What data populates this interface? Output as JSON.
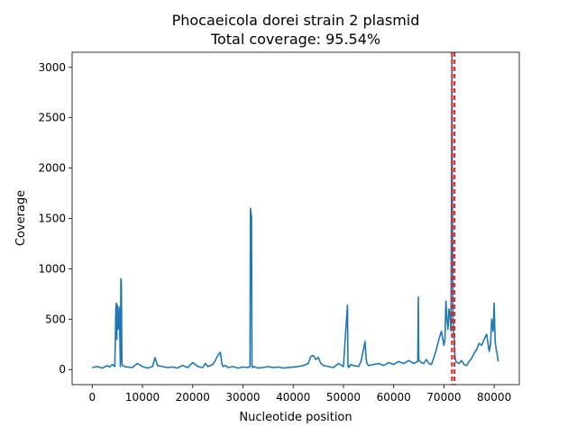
{
  "chart_data": {
    "type": "line",
    "title": "Phocaeicola dorei strain 2 plasmid",
    "subtitle": "Total coverage: 95.54%",
    "xlabel": "Nucleotide position",
    "ylabel": "Coverage",
    "xlim": [
      -4000,
      85000
    ],
    "ylim": [
      -150,
      3150
    ],
    "x_ticks": [
      0,
      10000,
      20000,
      30000,
      40000,
      50000,
      60000,
      70000,
      80000
    ],
    "x_tick_labels": [
      "0",
      "10000",
      "20000",
      "30000",
      "40000",
      "50000",
      "60000",
      "70000",
      "80000"
    ],
    "y_ticks": [
      0,
      500,
      1000,
      1500,
      2000,
      2500,
      3000
    ],
    "y_tick_labels": [
      "0",
      "500",
      "1000",
      "1500",
      "2000",
      "2500",
      "3000"
    ],
    "grid": false,
    "series_color": "#1f77b4",
    "vline_color": "#d62728",
    "series": [
      {
        "x": [
          0,
          1000,
          2000,
          3000,
          3500,
          4000,
          4500,
          4700,
          4800,
          4900,
          5000,
          5200,
          5400,
          5600,
          5700,
          5800,
          5900,
          6000,
          6500,
          7000,
          8000,
          9000,
          10000,
          11000,
          12000,
          12500,
          13000,
          14000,
          15000,
          16000,
          17000,
          17500,
          18000,
          19000,
          20000,
          21000,
          22000,
          22500,
          23000,
          24000,
          24500,
          25000,
          25500,
          25800,
          26000,
          26500,
          27000,
          28000,
          29000,
          30000,
          31000,
          31400,
          31500,
          31600,
          31700,
          31800,
          31900,
          32000,
          32200,
          33000,
          34000,
          35000,
          36000,
          37000,
          38000,
          39000,
          40000,
          41000,
          42000,
          43000,
          43500,
          44000,
          44500,
          45000,
          45500,
          46000,
          47000,
          48000,
          49000,
          50000,
          50800,
          50900,
          51000,
          51100,
          51500,
          52000,
          53000,
          53500,
          54000,
          54300,
          54500,
          54700,
          55000,
          56000,
          57000,
          58000,
          59000,
          60000,
          61000,
          62000,
          63000,
          64000,
          64800,
          64900,
          65000,
          65100,
          65500,
          66000,
          66500,
          67000,
          67500,
          68000,
          68500,
          69000,
          69500,
          70000,
          70200,
          70400,
          70600,
          70800,
          71000,
          71200,
          71400,
          71600,
          71800,
          72000,
          72200,
          72400,
          72600,
          73000,
          73500,
          74000,
          74500,
          75000,
          75500,
          76000,
          76500,
          77000,
          77500,
          78000,
          78500,
          79000,
          79300,
          79500,
          79800,
          80000,
          80200,
          80400,
          80600,
          80800
        ],
        "values": [
          20,
          30,
          15,
          40,
          25,
          50,
          30,
          600,
          660,
          300,
          640,
          400,
          620,
          30,
          900,
          870,
          80,
          40,
          30,
          25,
          20,
          60,
          30,
          15,
          30,
          120,
          40,
          30,
          20,
          25,
          15,
          30,
          40,
          20,
          70,
          30,
          20,
          60,
          30,
          50,
          90,
          140,
          170,
          60,
          30,
          40,
          20,
          30,
          15,
          25,
          20,
          30,
          1600,
          1550,
          1520,
          30,
          20,
          25,
          30,
          15,
          20,
          30,
          20,
          25,
          15,
          20,
          25,
          30,
          40,
          60,
          130,
          140,
          100,
          120,
          60,
          40,
          30,
          20,
          60,
          30,
          640,
          30,
          40,
          20,
          50,
          40,
          30,
          80,
          200,
          280,
          120,
          60,
          40,
          50,
          60,
          40,
          70,
          50,
          80,
          60,
          90,
          60,
          80,
          720,
          100,
          90,
          70,
          60,
          100,
          60,
          50,
          120,
          200,
          300,
          380,
          240,
          300,
          680,
          500,
          400,
          600,
          550,
          380,
          3150,
          500,
          300,
          120,
          80,
          70,
          60,
          90,
          50,
          40,
          80,
          110,
          160,
          200,
          260,
          240,
          300,
          350,
          180,
          260,
          500,
          380,
          660,
          280,
          200,
          150,
          80
        ]
      }
    ],
    "vlines": [
      71600,
      72100
    ]
  }
}
